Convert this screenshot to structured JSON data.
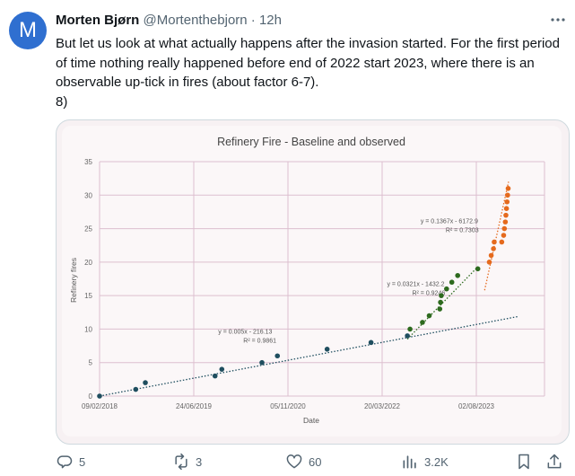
{
  "author": {
    "avatar_letter": "M",
    "avatar_color": "#2f6fd0",
    "name": "Morten Bjørn",
    "handle": "@Mortenthebjorn",
    "separator": "·",
    "time": "12h"
  },
  "tweet": {
    "lines": [
      "But let us look at what actually happens after the invasion started. For the first period of time nothing really happened before end of 2022 start 2023, where there is an observable up-tick in fires (about factor 6-7).",
      "8)"
    ]
  },
  "chart_data": {
    "type": "scatter",
    "title": "Refinery Fire - Baseline and observed",
    "xlabel": "Date",
    "ylabel": "Refinery fires",
    "ylim": [
      0,
      35
    ],
    "yticks": [
      "0",
      "5",
      "10",
      "15",
      "20",
      "25",
      "30",
      "35"
    ],
    "xticks": [
      "09/02/2018",
      "24/06/2019",
      "05/11/2020",
      "20/03/2022",
      "02/08/2023"
    ],
    "grid": true,
    "colors": {
      "baseline": "#1f4e5f",
      "mid": "#2d6a1e",
      "late": "#e56a1d",
      "grid": "#dcbfcf"
    },
    "series": [
      {
        "color": "baseline",
        "points": [
          [
            "2018-02-09",
            0
          ],
          [
            "2018-08-20",
            1
          ],
          [
            "2018-10-10",
            2
          ],
          [
            "2019-10-15",
            3
          ],
          [
            "2019-11-20",
            4
          ],
          [
            "2020-06-20",
            5
          ],
          [
            "2020-09-10",
            6
          ],
          [
            "2021-06-01",
            7
          ],
          [
            "2022-01-20",
            8
          ],
          [
            "2022-08-01",
            9
          ]
        ]
      },
      {
        "color": "mid",
        "points": [
          [
            "2022-08-15",
            10
          ],
          [
            "2022-10-20",
            11
          ],
          [
            "2022-11-25",
            12
          ],
          [
            "2023-01-20",
            13
          ],
          [
            "2023-01-24",
            14
          ],
          [
            "2023-01-28",
            15
          ],
          [
            "2023-02-25",
            16
          ],
          [
            "2023-03-25",
            17
          ],
          [
            "2023-04-25",
            18
          ],
          [
            "2023-08-10",
            19
          ]
        ]
      },
      {
        "color": "late",
        "points": [
          [
            "2023-10-10",
            20
          ],
          [
            "2023-10-20",
            21
          ],
          [
            "2023-11-01",
            22
          ],
          [
            "2023-11-05",
            23
          ],
          [
            "2023-12-15",
            23
          ],
          [
            "2023-12-25",
            24
          ],
          [
            "2023-12-29",
            25
          ],
          [
            "2024-01-03",
            26
          ],
          [
            "2024-01-06",
            27
          ],
          [
            "2024-01-09",
            28
          ],
          [
            "2024-01-12",
            29
          ],
          [
            "2024-01-15",
            30
          ],
          [
            "2024-01-18",
            31
          ]
        ]
      }
    ],
    "trendlines": [
      {
        "color": "baseline",
        "from": [
          "2018-02-09",
          0
        ],
        "to": [
          "2024-03-15",
          11.9
        ],
        "equation": "y = 0.005x - 216.13",
        "r2": "R² = 0.9861",
        "label_at": [
          "2019-11-01",
          9.3
        ]
      },
      {
        "color": "mid",
        "from": [
          "2022-08-01",
          8.5
        ],
        "to": [
          "2023-08-10",
          19.3
        ],
        "equation": "y = 0.0321x - 1432.2",
        "r2": "R² = 0.9246",
        "label_at": [
          "2022-04-15",
          16.4
        ]
      },
      {
        "color": "late",
        "from": [
          "2023-09-15",
          15.8
        ],
        "to": [
          "2024-01-20",
          32
        ],
        "equation": "y = 0.1367x - 6172.9",
        "r2": "R² = 0.7303",
        "label_at": [
          "2022-10-10",
          25.8
        ]
      }
    ]
  },
  "actions": {
    "replies": "5",
    "reposts": "3",
    "likes": "60",
    "views": "3.2K"
  }
}
